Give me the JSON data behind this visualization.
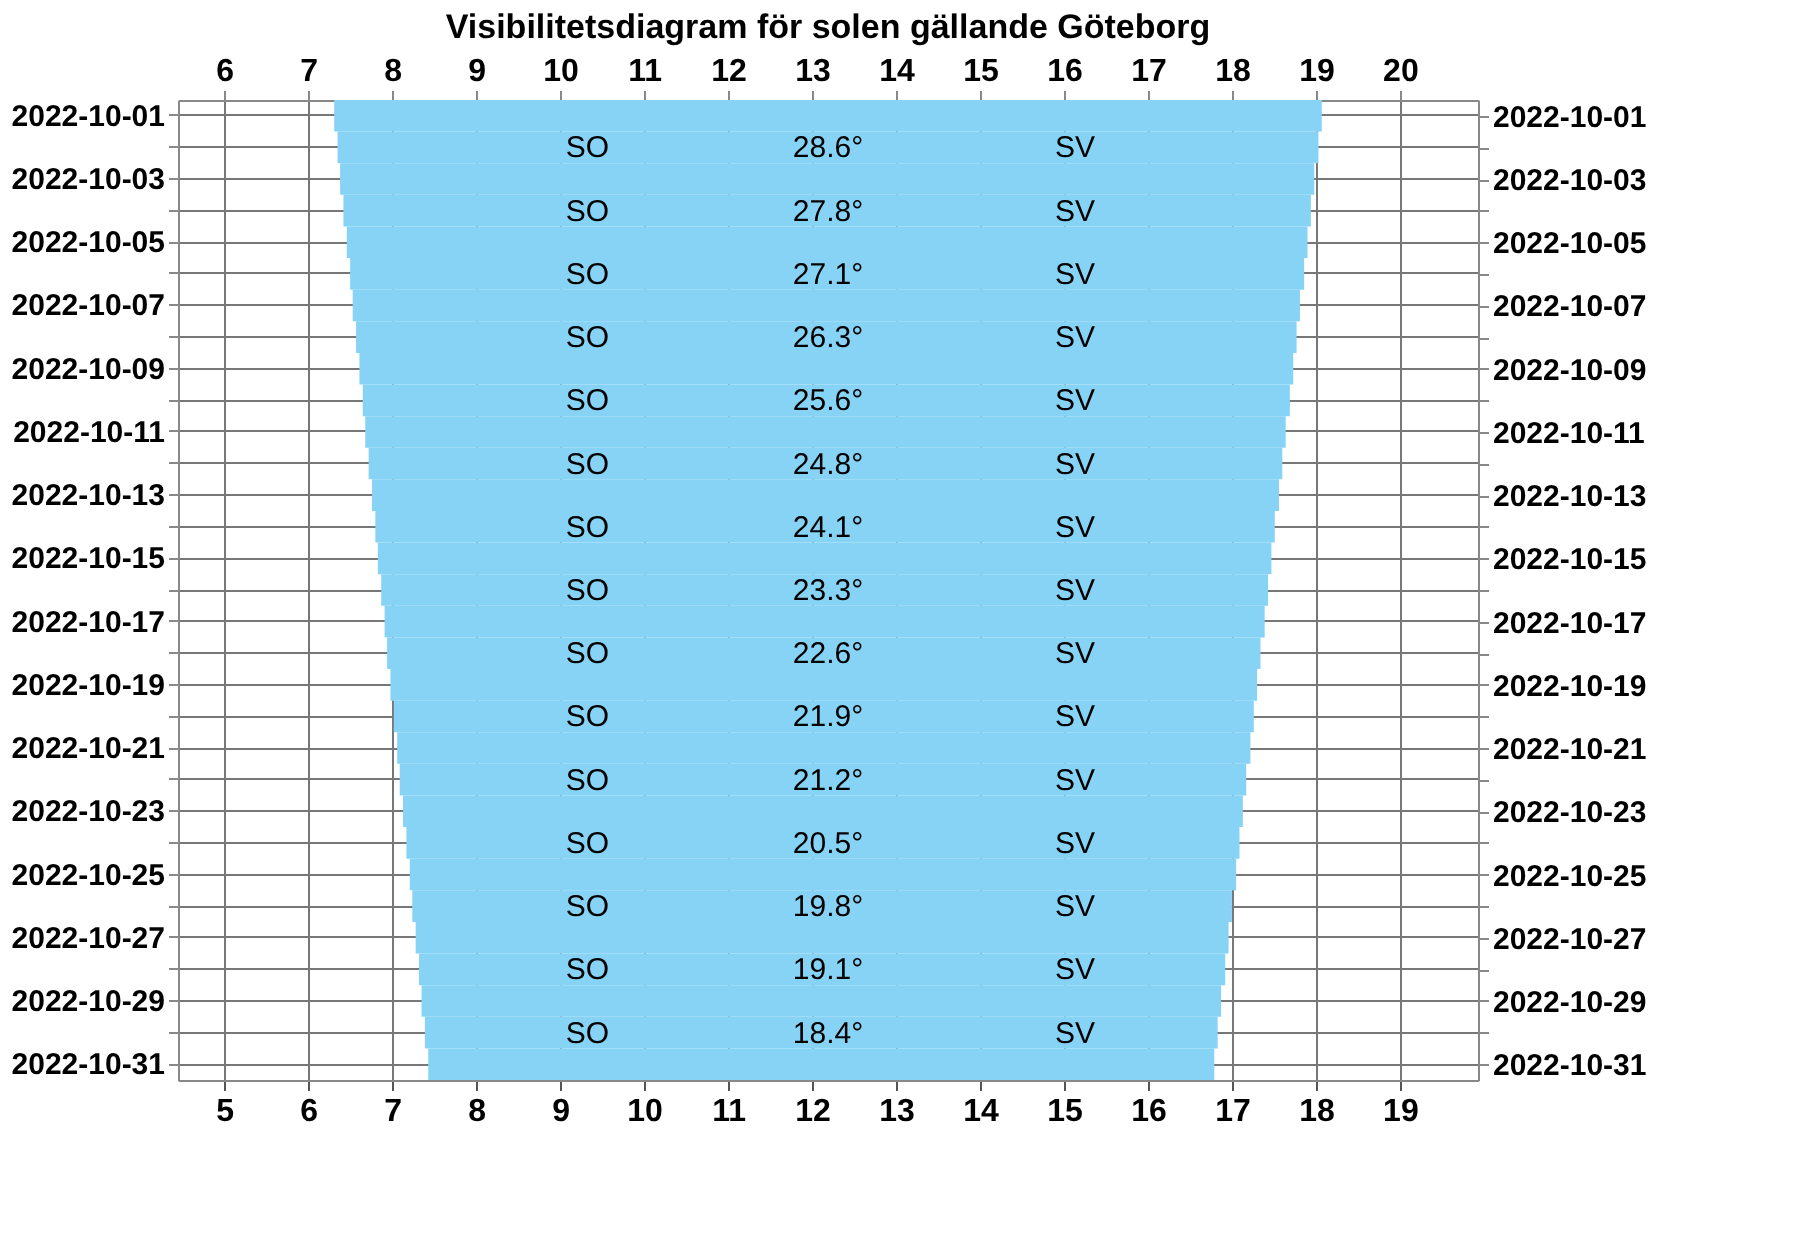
{
  "chart_data": {
    "type": "bar",
    "orientation": "horizontal",
    "title": "Visibilitetsdiagram för solen gällande Göteborg",
    "categories": [
      "2022-10-01",
      null,
      "2022-10-03",
      null,
      "2022-10-05",
      null,
      "2022-10-07",
      null,
      "2022-10-09",
      null,
      "2022-10-11",
      null,
      "2022-10-13",
      null,
      "2022-10-15",
      null,
      "2022-10-17",
      null,
      "2022-10-19",
      null,
      "2022-10-21",
      null,
      "2022-10-23",
      null,
      "2022-10-25",
      null,
      "2022-10-27",
      null,
      "2022-10-29",
      null,
      "2022-10-31"
    ],
    "base": [
      6.31,
      6.35,
      6.38,
      6.42,
      6.46,
      6.5,
      6.53,
      6.57,
      6.61,
      6.65,
      6.68,
      6.72,
      6.76,
      6.8,
      6.83,
      6.87,
      6.91,
      6.94,
      6.98,
      7.02,
      7.06,
      7.09,
      7.13,
      7.17,
      7.21,
      7.24,
      7.28,
      7.32,
      7.35,
      7.39,
      7.43
    ],
    "values": [
      11.76,
      11.68,
      11.6,
      11.52,
      11.44,
      11.36,
      11.28,
      11.2,
      11.12,
      11.04,
      10.96,
      10.88,
      10.8,
      10.71,
      10.64,
      10.56,
      10.48,
      10.4,
      10.32,
      10.24,
      10.16,
      10.08,
      10.0,
      9.92,
      9.84,
      9.76,
      9.68,
      9.6,
      9.52,
      9.44,
      9.36
    ],
    "color": "#87d3f5",
    "xlim": [
      4.45,
      19.93
    ],
    "xticks": [
      5,
      6,
      7,
      8,
      9,
      10,
      11,
      12,
      13,
      14,
      15,
      16,
      17,
      18,
      19
    ],
    "x2lim": [
      5.45,
      20.93
    ],
    "x2ticks": [
      6,
      7,
      8,
      9,
      10,
      11,
      12,
      13,
      14,
      15,
      16,
      17,
      18,
      19,
      20
    ],
    "grid": true,
    "annotations": [
      "SO",
      "28.6°",
      "SV",
      "SO",
      "27.8°",
      "SV",
      "SO",
      "27.1°",
      "SV",
      "SO",
      "26.3°",
      "SV",
      "SO",
      "25.6°",
      "SV",
      "SO",
      "24.8°",
      "SV",
      "SO",
      "24.1°",
      "SV",
      "SO",
      "23.3°",
      "SV",
      "SO",
      "22.6°",
      "SV",
      "SO",
      "21.9°",
      "SV",
      "SO",
      "21.2°",
      "SV",
      "SO",
      "20.5°",
      "SV",
      "SO",
      "19.8°",
      "SV",
      "SO",
      "19.1°",
      "SV",
      "SO",
      "18.4°",
      "SV"
    ]
  }
}
